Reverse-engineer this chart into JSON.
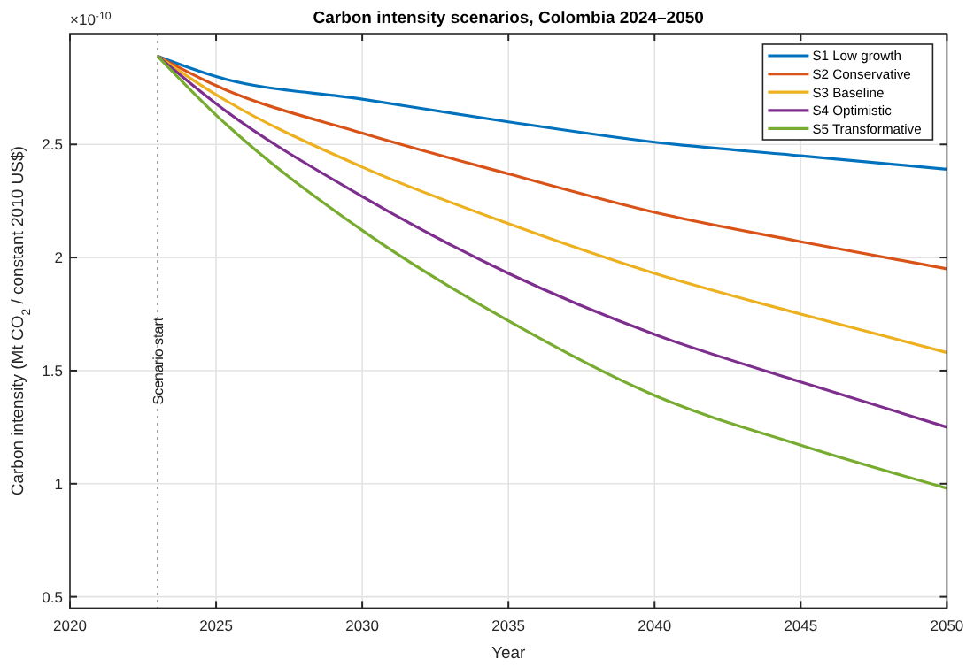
{
  "chart_data": {
    "type": "line",
    "title": "Carbon intensity scenarios, Colombia 2024–2050",
    "xlabel": "Year",
    "ylabel": "Carbon intensity (Mt CO$_{2}$ / constant 2010 US$)",
    "x": [
      2023,
      2025,
      2030,
      2035,
      2040,
      2045,
      2050
    ],
    "series": [
      {
        "name": "S1 Low growth",
        "color": "#0072bd",
        "values": [
          2.89,
          2.8,
          2.7,
          2.6,
          2.51,
          2.45,
          2.39
        ]
      },
      {
        "name": "S2 Conservative",
        "color": "#d95319",
        "values": [
          2.89,
          2.76,
          2.55,
          2.37,
          2.2,
          2.07,
          1.95
        ]
      },
      {
        "name": "S3 Baseline",
        "color": "#edb120",
        "values": [
          2.89,
          2.72,
          2.4,
          2.15,
          1.93,
          1.75,
          1.58
        ]
      },
      {
        "name": "S4 Optimistic",
        "color": "#7e2f8e",
        "values": [
          2.89,
          2.68,
          2.27,
          1.93,
          1.66,
          1.45,
          1.25
        ]
      },
      {
        "name": "S5 Transformative",
        "color": "#77ac30",
        "values": [
          2.89,
          2.63,
          2.12,
          1.72,
          1.39,
          1.17,
          0.98
        ]
      }
    ],
    "xlim": [
      2020,
      2050
    ],
    "xticks": [
      2020,
      2025,
      2030,
      2035,
      2040,
      2045,
      2050
    ],
    "ylim": [
      0.45,
      2.99
    ],
    "yticks": [
      0.5,
      1,
      1.5,
      2,
      2.5
    ],
    "ref_lines": [
      {
        "axis": "x",
        "value": 2023,
        "label": "Scenario start",
        "color": "#a0a0a0",
        "line_style": "dotted"
      }
    ],
    "annotations": [
      "×10$^{-10}$"
    ],
    "grid": true,
    "legend": "top right",
    "line_style": "solid",
    "marker": "none"
  }
}
